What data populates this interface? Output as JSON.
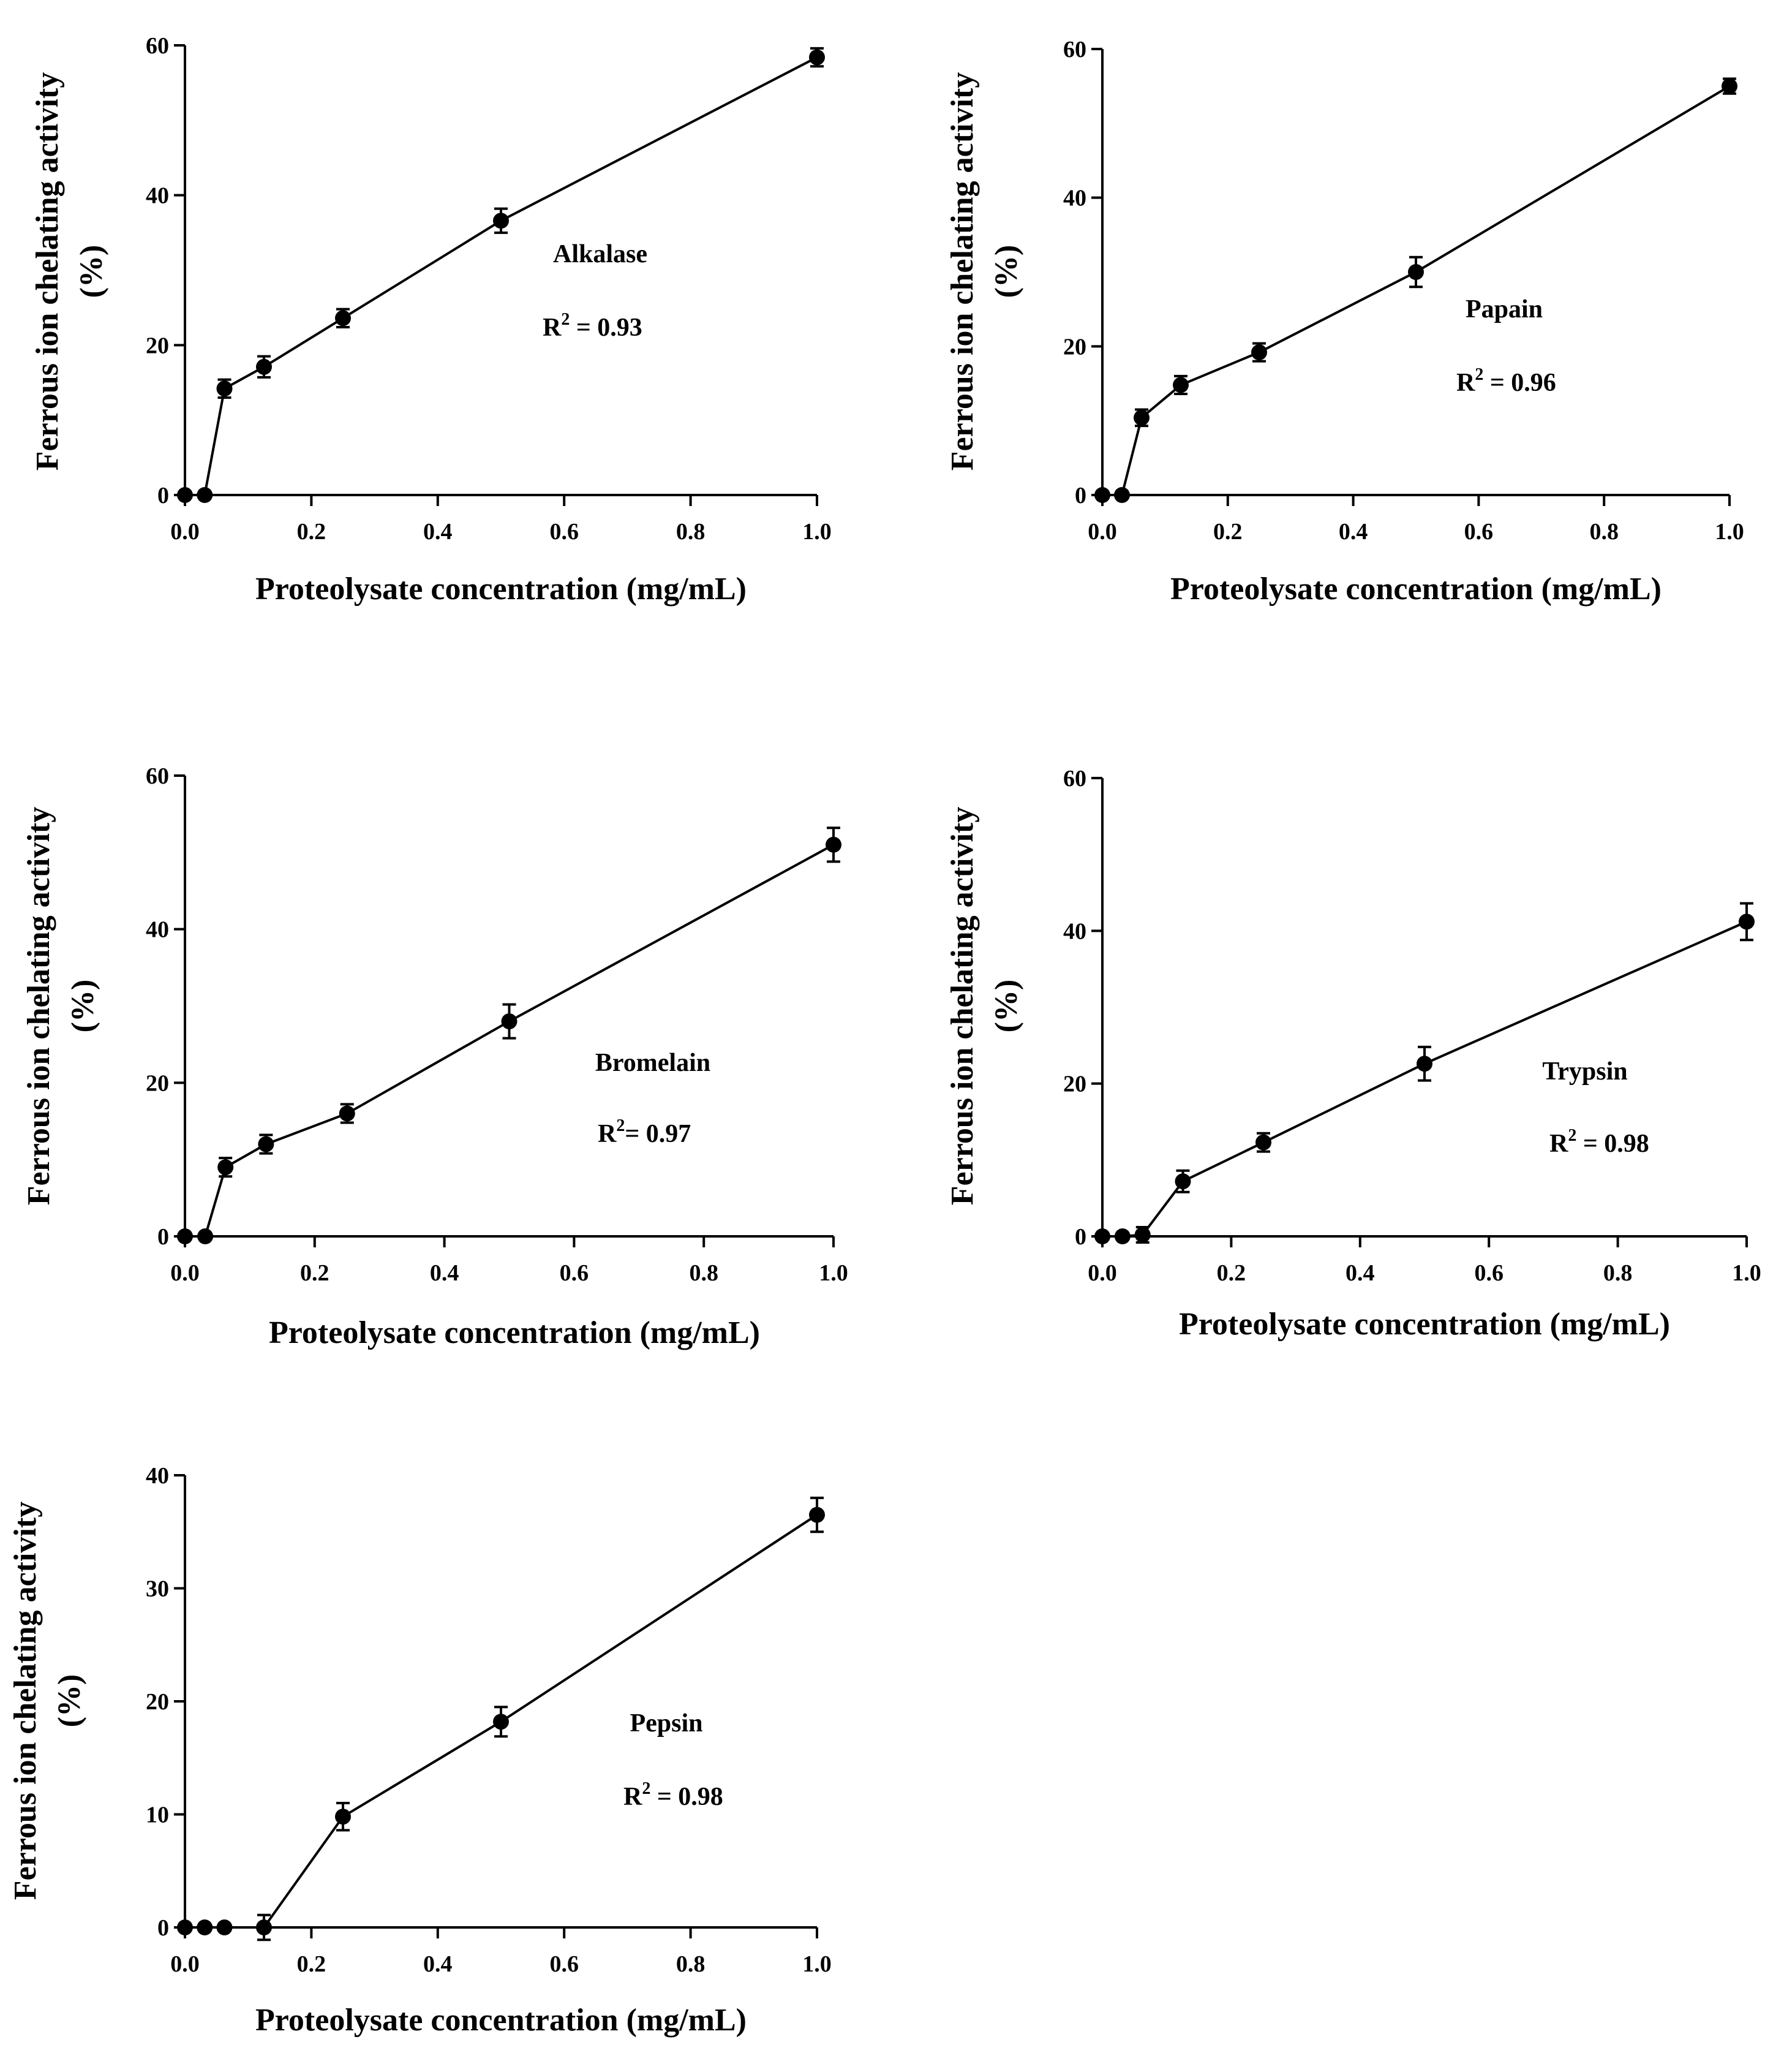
{
  "chart_data": [
    {
      "type": "line",
      "annotation": {
        "enzyme": "Alkalase",
        "r2_prefix": "R",
        "r2_sup": "2",
        "r2_value": " = 0.93"
      },
      "x": [
        0,
        0.03125,
        0.0625,
        0.125,
        0.25,
        0.5,
        1.0
      ],
      "values": [
        0,
        0,
        14.2,
        17.1,
        23.6,
        36.6,
        58.4
      ],
      "errors": [
        0,
        0,
        1.2,
        1.4,
        1.2,
        1.6,
        1.2
      ],
      "xlabel": "Proteolysate concentration (mg/mL)",
      "ylabel_line1": "Ferrous ion chelating activity",
      "ylabel_line2": "(%)",
      "xlim": [
        0,
        1.0
      ],
      "ylim": [
        0,
        60
      ],
      "xticks": [
        0,
        0.2,
        0.4,
        0.6,
        0.8,
        1.0
      ],
      "xtick_labels": [
        "0.0",
        "0.2",
        "0.4",
        "0.6",
        "0.8",
        "1.0"
      ],
      "yticks": [
        0,
        20,
        40,
        60
      ],
      "ytick_labels": [
        "0",
        "20",
        "40",
        "60"
      ]
    },
    {
      "type": "line",
      "annotation": {
        "enzyme": "Papain",
        "r2_prefix": "R",
        "r2_sup": "2",
        "r2_value": " = 0.96"
      },
      "x": [
        0,
        0.03125,
        0.0625,
        0.125,
        0.25,
        0.5,
        1.0
      ],
      "values": [
        0,
        0,
        10.4,
        14.8,
        19.2,
        30.0,
        55.0
      ],
      "errors": [
        0,
        0,
        1.1,
        1.2,
        1.2,
        2.0,
        1.0
      ],
      "xlabel": "Proteolysate concentration (mg/mL)",
      "ylabel_line1": "Ferrous ion chelating activity",
      "ylabel_line2": "(%)",
      "xlim": [
        0,
        1.0
      ],
      "ylim": [
        0,
        60
      ],
      "xticks": [
        0,
        0.2,
        0.4,
        0.6,
        0.8,
        1.0
      ],
      "xtick_labels": [
        "0.0",
        "0.2",
        "0.4",
        "0.6",
        "0.8",
        "1.0"
      ],
      "yticks": [
        0,
        20,
        40,
        60
      ],
      "ytick_labels": [
        "0",
        "20",
        "40",
        "60"
      ]
    },
    {
      "type": "line",
      "annotation": {
        "enzyme": "Bromelain",
        "r2_prefix": "R",
        "r2_sup": "2",
        "r2_value": "= 0.97"
      },
      "x": [
        0,
        0.03125,
        0.0625,
        0.125,
        0.25,
        0.5,
        1.0
      ],
      "values": [
        0,
        0,
        9.0,
        12.0,
        16.0,
        28.0,
        51.0
      ],
      "errors": [
        0,
        0,
        1.2,
        1.2,
        1.2,
        2.2,
        2.2
      ],
      "xlabel": "Proteolysate concentration (mg/mL)",
      "ylabel_line1": "Ferrous ion chelating activity",
      "ylabel_line2": "(%)",
      "xlim": [
        0,
        1.0
      ],
      "ylim": [
        0,
        60
      ],
      "xticks": [
        0,
        0.2,
        0.4,
        0.6,
        0.8,
        1.0
      ],
      "xtick_labels": [
        "0.0",
        "0.2",
        "0.4",
        "0.6",
        "0.8",
        "1.0"
      ],
      "yticks": [
        0,
        20,
        40,
        60
      ],
      "ytick_labels": [
        "0",
        "20",
        "40",
        "60"
      ]
    },
    {
      "type": "line",
      "annotation": {
        "enzyme": "Trypsin",
        "r2_prefix": "R",
        "r2_sup": "2",
        "r2_value": " = 0.98"
      },
      "x": [
        0,
        0.03125,
        0.0625,
        0.125,
        0.25,
        0.5,
        1.0
      ],
      "values": [
        0,
        0,
        0.2,
        7.2,
        12.3,
        22.6,
        41.2
      ],
      "errors": [
        0,
        0,
        1.0,
        1.4,
        1.2,
        2.2,
        2.4
      ],
      "xlabel": "Proteolysate concentration (mg/mL)",
      "ylabel_line1": "Ferrous ion chelating activity",
      "ylabel_line2": "(%)",
      "xlim": [
        0,
        1.0
      ],
      "ylim": [
        0,
        60
      ],
      "xticks": [
        0,
        0.2,
        0.4,
        0.6,
        0.8,
        1.0
      ],
      "xtick_labels": [
        "0.0",
        "0.2",
        "0.4",
        "0.6",
        "0.8",
        "1.0"
      ],
      "yticks": [
        0,
        20,
        40,
        60
      ],
      "ytick_labels": [
        "0",
        "20",
        "40",
        "60"
      ]
    },
    {
      "type": "line",
      "annotation": {
        "enzyme": "Pepsin",
        "r2_prefix": "R",
        "r2_sup": "2",
        "r2_value": " = 0.98"
      },
      "x": [
        0,
        0.03125,
        0.0625,
        0.125,
        0.25,
        0.5,
        1.0
      ],
      "values": [
        0,
        0,
        0,
        0,
        9.8,
        18.2,
        36.5
      ],
      "errors": [
        0,
        0,
        0,
        1.1,
        1.2,
        1.3,
        1.5
      ],
      "xlabel": "Proteolysate concentration (mg/mL)",
      "ylabel_line1": "Ferrous ion chelating activity",
      "ylabel_line2": "(%)",
      "xlim": [
        0,
        1.0
      ],
      "ylim": [
        0,
        40
      ],
      "xticks": [
        0,
        0.2,
        0.4,
        0.6,
        0.8,
        1.0
      ],
      "xtick_labels": [
        "0.0",
        "0.2",
        "0.4",
        "0.6",
        "0.8",
        "1.0"
      ],
      "yticks": [
        0,
        10,
        20,
        30,
        40
      ],
      "ytick_labels": [
        "0",
        "10",
        "20",
        "30",
        "40"
      ]
    }
  ]
}
